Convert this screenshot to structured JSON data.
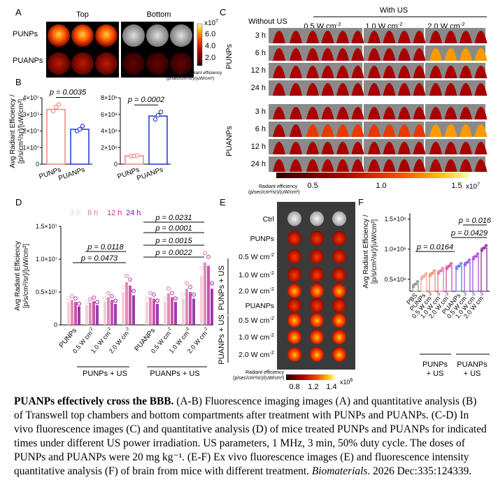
{
  "panelA": {
    "letter": "A",
    "cols": [
      "Top",
      "Bottom"
    ],
    "rows": [
      "PUNPs",
      "PUANPs"
    ],
    "scale_exp": "x10",
    "scale_exp_sup": "7",
    "scale_ticks": [
      "6.0",
      "4.0",
      "2.0"
    ],
    "scale_caption": [
      "Radiant efficiency",
      "(p/sec/cm²/sr)/(uW/cm²)"
    ]
  },
  "panelB": {
    "letter": "B",
    "ylabel_line1": "Avg Radiant Efficiency /",
    "ylabel_line2": "[p/s/cm²/sr]/[uW/cm²]",
    "charts": [
      {
        "type": "bar",
        "categories": [
          "PUNPs",
          "PUANPs"
        ],
        "values": [
          3.3,
          2.1
        ],
        "points": [
          [
            3.2,
            3.45,
            3.6
          ],
          [
            2.0,
            2.1,
            2.3
          ]
        ],
        "ylim": [
          0,
          4
        ],
        "ticks": [
          "0",
          "1×10⁷",
          "2×10⁷",
          "3×10⁷",
          "4×10⁷"
        ],
        "annotation": "p = 0.0035",
        "colors": [
          "#f08c80",
          "#2f3cd8"
        ]
      },
      {
        "type": "bar",
        "categories": [
          "PUNPs",
          "PUANPs"
        ],
        "values": [
          1.0,
          5.8
        ],
        "points": [
          [
            0.95,
            1.0,
            1.05
          ],
          [
            5.4,
            5.9,
            6.3
          ]
        ],
        "ylim": [
          0,
          8
        ],
        "ticks": [
          "0",
          "2×10⁶",
          "4×10⁶",
          "6×10⁶",
          "8×10⁶"
        ],
        "annotation": "p = 0.0002",
        "colors": [
          "#f08c80",
          "#2f3cd8"
        ]
      }
    ]
  },
  "panelC": {
    "letter": "C",
    "with_us": "With US",
    "cols": [
      "Without US",
      "0.5 W cm",
      "1.0 W cm",
      "2.0 W cm"
    ],
    "col_sup": "-2",
    "groups": [
      "PUNPs",
      "PUANPs"
    ],
    "times": [
      "3 h",
      "6 h",
      "12 h",
      "24 h"
    ],
    "scale_caption": [
      "Radiant efficiency",
      "(p/sec/cm²/sr)/(uW/cm²)"
    ],
    "scale_ticks": [
      "0.5",
      "1.0",
      "1.5"
    ],
    "scale_exp": "x10",
    "scale_exp_sup": "7"
  },
  "chart_data": [
    {
      "panel": "D",
      "type": "bar",
      "ylabel_line1": "Avg Radiant Efficiency",
      "ylabel_line2": "[p/s/cm²/sr]/[uW/cm²]",
      "ticks": [
        "0",
        "0.5×10⁷",
        "1.0×10⁷",
        "1.5×10⁷"
      ],
      "ylim": [
        0,
        1.5
      ],
      "legend": [
        "3 h",
        "6 h",
        "12 h",
        "24 h"
      ],
      "legend_colors": [
        "#f2c6d6",
        "#d87aa8",
        "#c0369a",
        "#8a1aa0"
      ],
      "categories": [
        "PUNPs",
        "0.5 W cm",
        "1.0 W cm",
        "2.0 W cm",
        "PUANPs",
        "0.5 W cm",
        "1.0 W cm",
        "2.0 W cm"
      ],
      "cat_sup": "-2",
      "series": [
        {
          "name": "3 h",
          "values": [
            0.35,
            0.3,
            0.35,
            0.5,
            0.35,
            0.35,
            0.4,
            0.75
          ]
        },
        {
          "name": "6 h",
          "values": [
            0.38,
            0.34,
            0.42,
            0.65,
            0.42,
            0.48,
            0.55,
            0.95
          ]
        },
        {
          "name": "12 h",
          "values": [
            0.35,
            0.36,
            0.38,
            0.6,
            0.4,
            0.42,
            0.5,
            0.9
          ]
        },
        {
          "name": "24 h",
          "values": [
            0.28,
            0.3,
            0.32,
            0.45,
            0.32,
            0.35,
            0.4,
            0.55
          ]
        }
      ],
      "group_labels": [
        "PUNPs + US",
        "PUANPs + US"
      ],
      "annotations": [
        "p = 0.0118",
        "p = 0.0473",
        "p = 0.0231",
        "p = 0.0001",
        "p = 0.0015",
        "p = 0.0022"
      ]
    },
    {
      "panel": "F",
      "type": "bar",
      "ylabel_line1": "Avg Radiant Efficiency /",
      "ylabel_line2": "[p/s/cm²/sr]/[uW/cm²]",
      "ticks": [
        "0.5×10⁶",
        "1.0×10⁶",
        "1.5×10⁶"
      ],
      "ylim": [
        0,
        1.6
      ],
      "categories": [
        "PBS",
        "PUNPs",
        "0.5 W cm",
        "1.0 W cm",
        "2.0 W cm",
        "PUANPs",
        "0.5 W cm",
        "1.0 W cm",
        "2.0 W cm"
      ],
      "cat_sup": "-2",
      "values": [
        0.42,
        0.55,
        0.6,
        0.64,
        0.72,
        0.72,
        0.78,
        0.88,
        1.02
      ],
      "colors": [
        "#888888",
        "#f29c8a",
        "#f0845f",
        "#ea6a90",
        "#d6409a",
        "#5a6ef2",
        "#8a50e0",
        "#a040d0",
        "#8a1aa0"
      ],
      "group_labels": [
        "PUNPs\n+ US",
        "PUANPs\n+ US"
      ],
      "annotations": [
        "p = 0.016",
        "p = 0.0429",
        "p = 0.0164"
      ]
    }
  ],
  "panelE": {
    "letter": "E",
    "rows": [
      "Ctrl",
      "PUNPs",
      "0.5 W cm",
      "1.0 W cm",
      "2.0 W cm",
      "PUANPs",
      "0.5 W cm",
      "1.0 W cm",
      "2.0 W cm"
    ],
    "row_sup": "-2",
    "group_labels": [
      "PUNPs + US",
      "PUANPs + US"
    ],
    "scale_caption": [
      "Radiant efficiency",
      "(p/sec/cm²/sr)/(uW/cm²)"
    ],
    "scale_ticks": [
      "0.8",
      "1.2",
      "1.4"
    ],
    "scale_exp": "x10",
    "scale_exp_sup": "6"
  },
  "panelD_letter": "D",
  "panelF_letter": "F",
  "caption": {
    "title": "PUANPs effectively cross the BBB.",
    "body": " (A-B) Fluorescence imaging images (A) and quantitative analysis (B) of Transwell top chambers and bottom compartments after treatment with PUNPs and PUANPs. (C-D) In vivo fluorescence images (C) and quantitative analysis (D) of mice treated PUNPs and PUANPs for indicated times under different US power irradiation. US parameters, 1 MHz, 3 min, 50% duty cycle. The doses of PUNPs and PUANPs were 20 mg kg⁻¹. (E-F) Ex vivo fluorescence images (E) and fluorescence intensity quantitative analysis (F) of brain from mice with different treatment. ",
    "journal": "Biomaterials",
    "ref": ". 2026 Dec:335:124339."
  }
}
